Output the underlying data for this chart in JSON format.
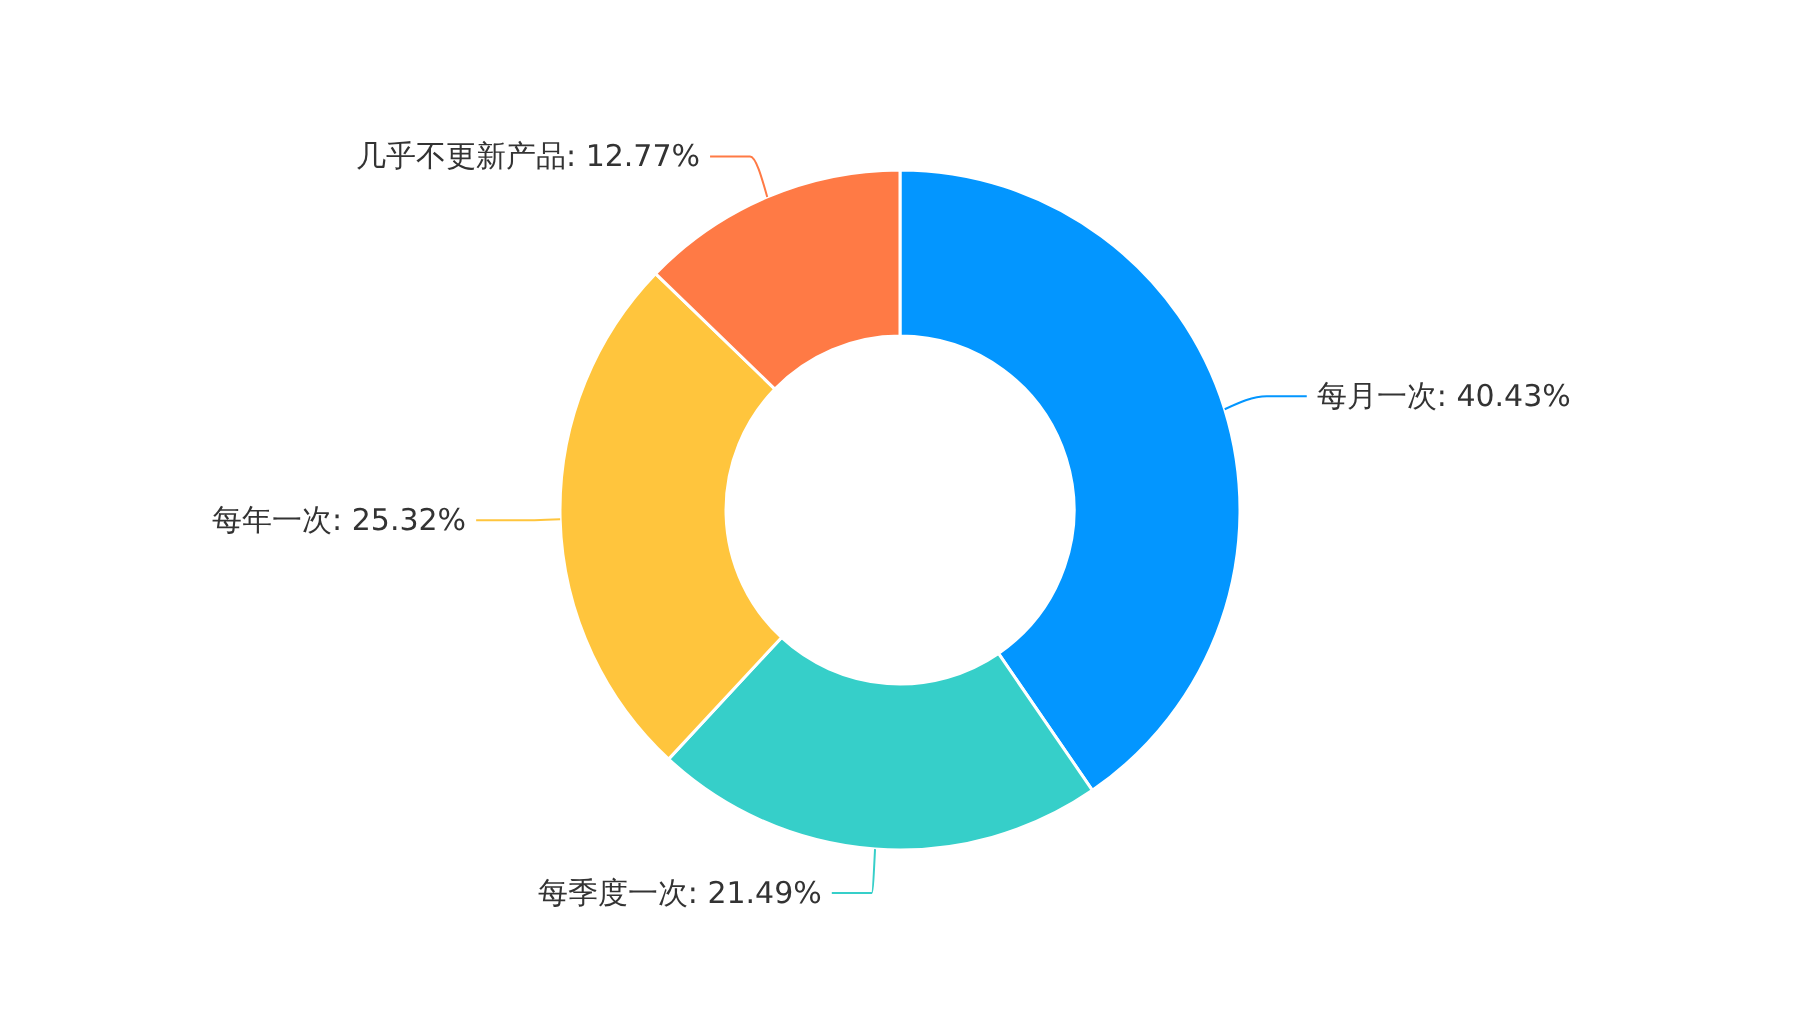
{
  "chart_data": {
    "type": "donut",
    "categories": [
      "每月一次",
      "每季度一次",
      "每年一次",
      "几乎不更新产品"
    ],
    "values": [
      40.43,
      21.49,
      25.32,
      12.77
    ],
    "colors": [
      "#0396ff",
      "#36cfc9",
      "#ffc53d",
      "#ff7a45"
    ],
    "value_labels": [
      "40.43%",
      "21.49%",
      "25.32%",
      "12.77%"
    ]
  }
}
